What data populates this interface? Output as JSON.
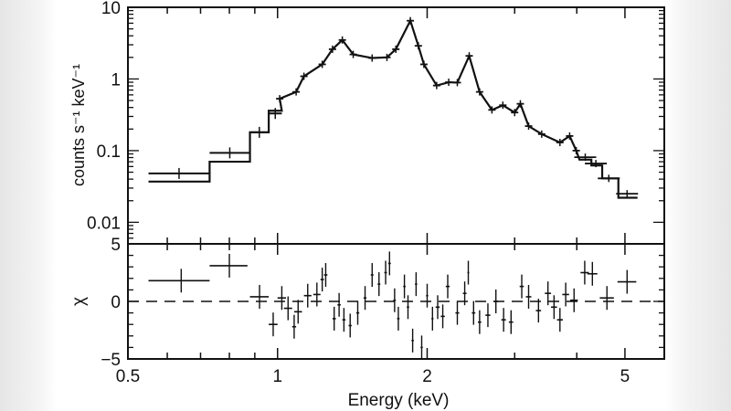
{
  "chart_data": [
    {
      "type": "line",
      "panel": "spectrum",
      "xlabel": "Energy (keV)",
      "ylabel": "counts s⁻¹ keV⁻¹",
      "xscale": "log",
      "yscale": "log",
      "xlim": [
        0.5,
        6
      ],
      "ylim": [
        0.005,
        10
      ],
      "xticks": [
        "0.5",
        "1",
        "2",
        "5"
      ],
      "yticks": [
        "0.01",
        "0.1",
        "1",
        "10"
      ],
      "step_bins": [
        {
          "lo": 0.55,
          "hi": 0.73,
          "data": 0.048,
          "model": 0.037
        },
        {
          "lo": 0.73,
          "hi": 0.88,
          "data": 0.093,
          "model": 0.07
        },
        {
          "lo": 0.88,
          "hi": 0.96,
          "data": 0.18,
          "model": 0.18
        },
        {
          "lo": 0.96,
          "hi": 1.02,
          "data": 0.33,
          "model": 0.36
        }
      ],
      "x": [
        1.01,
        1.09,
        1.13,
        1.23,
        1.29,
        1.35,
        1.42,
        1.55,
        1.66,
        1.73,
        1.85,
        1.92,
        1.97,
        2.09,
        2.21,
        2.3,
        2.43,
        2.55,
        2.7,
        2.84,
        3.0,
        3.08,
        3.2,
        3.4,
        3.7,
        3.87,
        3.99,
        4.16,
        4.37,
        4.64,
        5.05
      ],
      "y": [
        0.53,
        0.66,
        1.09,
        1.6,
        2.6,
        3.5,
        2.2,
        1.96,
        2.0,
        2.6,
        6.5,
        2.9,
        1.6,
        0.81,
        0.9,
        0.89,
        2.1,
        0.66,
        0.37,
        0.43,
        0.34,
        0.45,
        0.22,
        0.17,
        0.13,
        0.16,
        0.1,
        0.081,
        0.066,
        0.041,
        0.025
      ],
      "model_tail": [
        {
          "lo": 4.05,
          "hi": 4.28,
          "model": 0.075
        },
        {
          "lo": 4.28,
          "hi": 4.5,
          "model": 0.062
        },
        {
          "lo": 4.5,
          "hi": 4.85,
          "model": 0.041
        },
        {
          "lo": 4.85,
          "hi": 5.3,
          "model": 0.022
        }
      ]
    },
    {
      "type": "scatter",
      "panel": "residuals",
      "xlabel": "Energy (keV)",
      "ylabel": "χ",
      "xscale": "log",
      "xlim": [
        0.5,
        6
      ],
      "ylim": [
        -5,
        5
      ],
      "yticks": [
        "−5",
        "0",
        "5"
      ],
      "reference_line": 0,
      "points": [
        [
          0.64,
          1.8,
          0.09
        ],
        [
          0.8,
          3.1,
          0.07
        ],
        [
          0.92,
          0.4,
          0.04
        ],
        [
          0.98,
          -2.0,
          0.02
        ],
        [
          1.02,
          0.3,
          0.02
        ],
        [
          1.05,
          -0.6,
          0.02
        ],
        [
          1.08,
          -2.2,
          0.01
        ],
        [
          1.1,
          -0.9,
          0.02
        ],
        [
          1.15,
          0.5,
          0.02
        ],
        [
          1.2,
          0.6,
          0.02
        ],
        [
          1.23,
          1.9,
          0.01
        ],
        [
          1.25,
          2.3,
          0.01
        ],
        [
          1.3,
          -1.5,
          0.01
        ],
        [
          1.33,
          -0.3,
          0.01
        ],
        [
          1.36,
          -1.6,
          0.01
        ],
        [
          1.4,
          -2.1,
          0.01
        ],
        [
          1.45,
          -1.0,
          0.01
        ],
        [
          1.5,
          0.3,
          0.01
        ],
        [
          1.55,
          2.3,
          0.01
        ],
        [
          1.6,
          1.5,
          0.01
        ],
        [
          1.65,
          2.5,
          0.01
        ],
        [
          1.68,
          3.3,
          0.01
        ],
        [
          1.72,
          0.1,
          0.01
        ],
        [
          1.75,
          -1.5,
          0.01
        ],
        [
          1.8,
          1.3,
          0.01
        ],
        [
          1.83,
          -0.5,
          0.01
        ],
        [
          1.87,
          -3.4,
          0.01
        ],
        [
          1.9,
          1.5,
          0.01
        ],
        [
          1.95,
          -4.0,
          0.01
        ],
        [
          2.0,
          0.5,
          0.01
        ],
        [
          2.05,
          -1.5,
          0.01
        ],
        [
          2.1,
          -0.5,
          0.02
        ],
        [
          2.15,
          -1.3,
          0.02
        ],
        [
          2.2,
          1.3,
          0.02
        ],
        [
          2.3,
          -1.0,
          0.02
        ],
        [
          2.38,
          0.7,
          0.02
        ],
        [
          2.42,
          2.5,
          0.01
        ],
        [
          2.48,
          -1.0,
          0.02
        ],
        [
          2.55,
          -1.8,
          0.02
        ],
        [
          2.65,
          -1.2,
          0.03
        ],
        [
          2.75,
          0.0,
          0.03
        ],
        [
          2.85,
          -1.6,
          0.03
        ],
        [
          2.95,
          -1.8,
          0.03
        ],
        [
          3.1,
          1.3,
          0.03
        ],
        [
          3.2,
          0.4,
          0.04
        ],
        [
          3.35,
          -0.8,
          0.04
        ],
        [
          3.5,
          0.7,
          0.05
        ],
        [
          3.6,
          -0.5,
          0.05
        ],
        [
          3.7,
          -1.6,
          0.05
        ],
        [
          3.8,
          0.6,
          0.06
        ],
        [
          3.95,
          0.1,
          0.07
        ],
        [
          4.15,
          2.5,
          0.08
        ],
        [
          4.3,
          2.4,
          0.1
        ],
        [
          4.6,
          0.3,
          0.15
        ],
        [
          5.05,
          1.7,
          0.22
        ]
      ]
    }
  ]
}
